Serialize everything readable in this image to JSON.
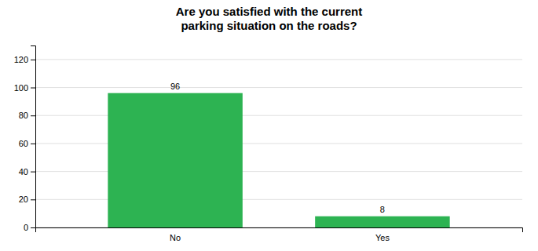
{
  "chart_data": {
    "type": "bar",
    "title": "Are you satisfied with the current\nparking situation on the roads?",
    "categories": [
      "No",
      "Yes"
    ],
    "values": [
      96,
      8
    ],
    "color": "#2db352",
    "ylim": [
      0,
      130
    ],
    "yticks": [
      0,
      20,
      40,
      60,
      80,
      100,
      120
    ],
    "grid": true,
    "data_labels": true
  }
}
